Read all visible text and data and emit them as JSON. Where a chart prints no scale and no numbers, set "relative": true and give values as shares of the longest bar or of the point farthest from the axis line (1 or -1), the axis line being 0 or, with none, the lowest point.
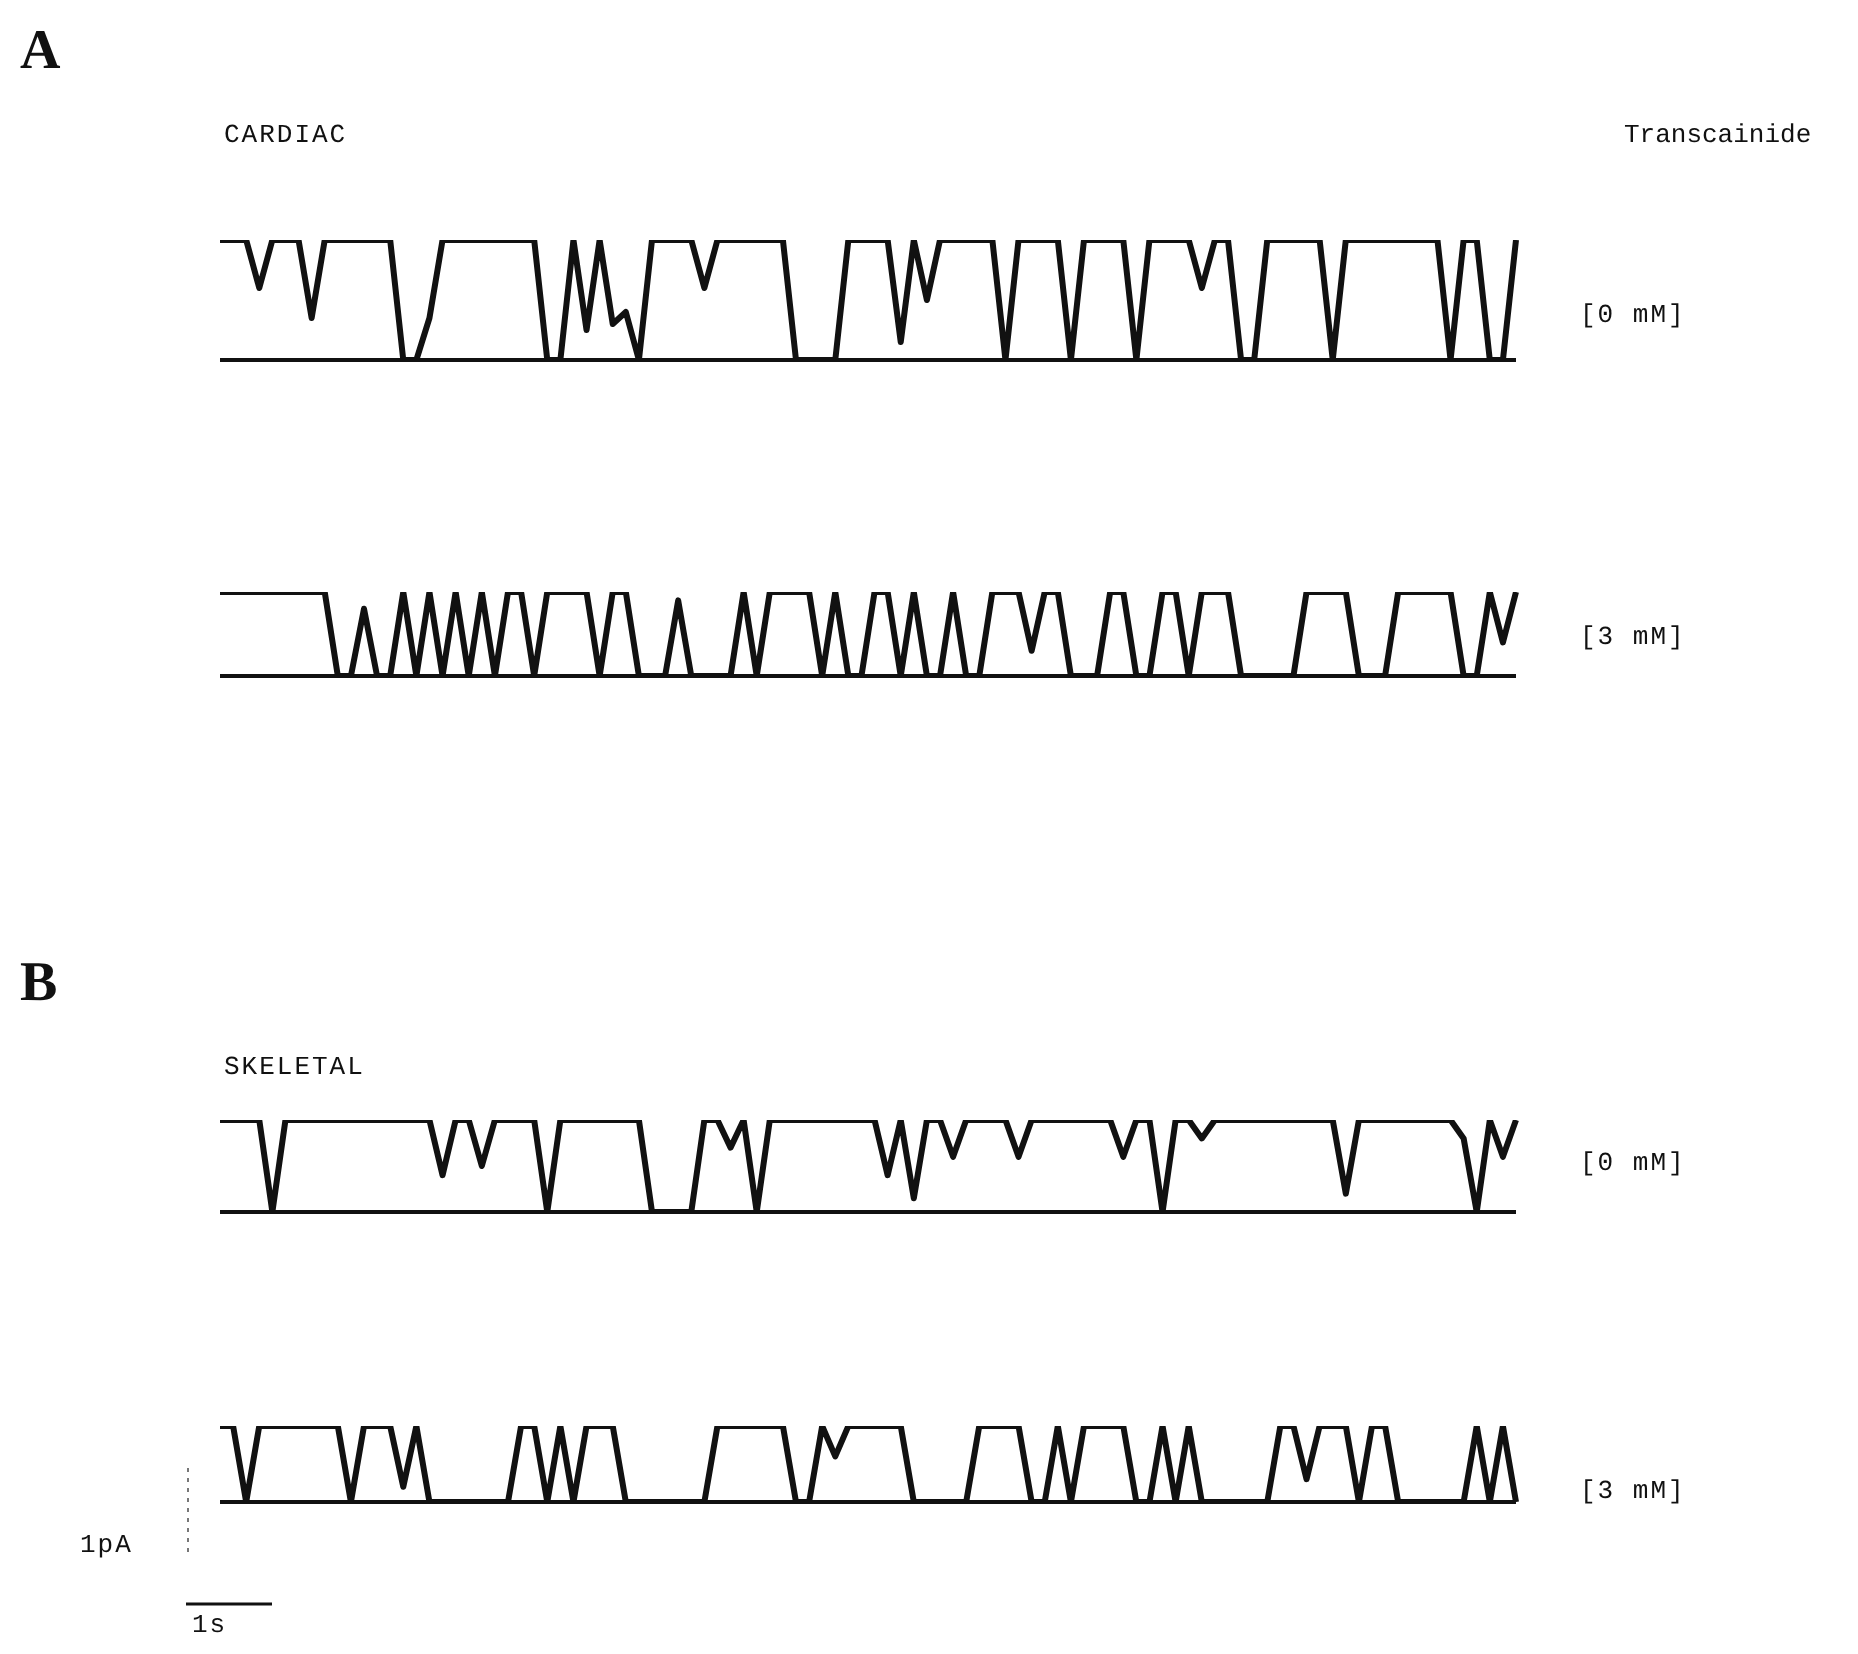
{
  "chart_data": [
    {
      "type": "line",
      "title": "CARDIAC",
      "relative": true,
      "annotations": [
        "A",
        "Transcainide",
        "[0 mM]"
      ],
      "categories": [
        null,
        null,
        null,
        null,
        null,
        null,
        null,
        null,
        null,
        null,
        null,
        null,
        null,
        null,
        null,
        null,
        null,
        null,
        null,
        null,
        null,
        null,
        null,
        null,
        null,
        null,
        null,
        null,
        null,
        null,
        null,
        null,
        null,
        null,
        null,
        null,
        null,
        null,
        null,
        null,
        null,
        null,
        null,
        null,
        null,
        null,
        null,
        null,
        null,
        null,
        null,
        null,
        null,
        null,
        null,
        null,
        null,
        null,
        null,
        null,
        null,
        null,
        null,
        null,
        null,
        null,
        null,
        null,
        null,
        null,
        null,
        null,
        null,
        null,
        null,
        null,
        null,
        null,
        null,
        null,
        null,
        null,
        null,
        null,
        null,
        null,
        null,
        null,
        null,
        null,
        null,
        null,
        null,
        null,
        null,
        null,
        null,
        null,
        null,
        null
      ],
      "series": [
        {
          "color": "#111111",
          "values": [
            1,
            1,
            1,
            0.6,
            1,
            1,
            1,
            0.35,
            1,
            1,
            1,
            1,
            1,
            1,
            0,
            0,
            0.35,
            1,
            1,
            1,
            1,
            1,
            1,
            1,
            1,
            0,
            0,
            1,
            0.25,
            1,
            0.3,
            0.4,
            0,
            1,
            1,
            1,
            1,
            0.6,
            1,
            1,
            1,
            1,
            1,
            1,
            0,
            0,
            0,
            0,
            1,
            1,
            1,
            1,
            0.15,
            1,
            0.5,
            1,
            1,
            1,
            1,
            1,
            0,
            1,
            1,
            1,
            1,
            0,
            1,
            1,
            1,
            1,
            0,
            1,
            1,
            1,
            1,
            0.6,
            1,
            1,
            0,
            0,
            1,
            1,
            1,
            1,
            1,
            0,
            1,
            1,
            1,
            1,
            1,
            1,
            1,
            1,
            0,
            1,
            1,
            0,
            0,
            1
          ]
        }
      ]
    },
    {
      "type": "line",
      "relative": true,
      "annotations": [
        "[3 mM]"
      ],
      "categories": [
        null,
        null,
        null,
        null,
        null,
        null,
        null,
        null,
        null,
        null,
        null,
        null,
        null,
        null,
        null,
        null,
        null,
        null,
        null,
        null,
        null,
        null,
        null,
        null,
        null,
        null,
        null,
        null,
        null,
        null,
        null,
        null,
        null,
        null,
        null,
        null,
        null,
        null,
        null,
        null,
        null,
        null,
        null,
        null,
        null,
        null,
        null,
        null,
        null,
        null,
        null,
        null,
        null,
        null,
        null,
        null,
        null,
        null,
        null,
        null,
        null,
        null,
        null,
        null,
        null,
        null,
        null,
        null,
        null,
        null,
        null,
        null,
        null,
        null,
        null,
        null,
        null,
        null,
        null,
        null,
        null,
        null,
        null,
        null,
        null,
        null,
        null,
        null,
        null,
        null,
        null,
        null,
        null,
        null,
        null,
        null,
        null,
        null,
        null,
        null
      ],
      "series": [
        {
          "color": "#111111",
          "values": [
            1,
            1,
            1,
            1,
            1,
            1,
            1,
            1,
            1,
            0,
            0,
            0.8,
            0,
            0,
            1,
            0,
            1,
            0,
            1,
            0,
            1,
            0,
            1,
            1,
            0,
            1,
            1,
            1,
            1,
            0,
            1,
            1,
            0,
            0,
            0,
            0.9,
            0,
            0,
            0,
            0,
            1,
            0,
            1,
            1,
            1,
            1,
            0,
            1,
            0,
            0,
            1,
            1,
            0,
            1,
            0,
            0,
            1,
            0,
            0,
            1,
            1,
            1,
            0.3,
            1,
            1,
            0,
            0,
            0,
            1,
            1,
            0,
            0,
            1,
            1,
            0,
            1,
            1,
            1,
            0,
            0,
            0,
            0,
            0,
            1,
            1,
            1,
            1,
            0,
            0,
            0,
            1,
            1,
            1,
            1,
            1,
            0,
            0,
            1,
            0.4,
            1
          ]
        }
      ]
    },
    {
      "type": "line",
      "title": "SKELETAL",
      "relative": true,
      "annotations": [
        "B",
        "[0 mM]"
      ],
      "categories": [
        null,
        null,
        null,
        null,
        null,
        null,
        null,
        null,
        null,
        null,
        null,
        null,
        null,
        null,
        null,
        null,
        null,
        null,
        null,
        null,
        null,
        null,
        null,
        null,
        null,
        null,
        null,
        null,
        null,
        null,
        null,
        null,
        null,
        null,
        null,
        null,
        null,
        null,
        null,
        null,
        null,
        null,
        null,
        null,
        null,
        null,
        null,
        null,
        null,
        null,
        null,
        null,
        null,
        null,
        null,
        null,
        null,
        null,
        null,
        null,
        null,
        null,
        null,
        null,
        null,
        null,
        null,
        null,
        null,
        null,
        null,
        null,
        null,
        null,
        null,
        null,
        null,
        null,
        null,
        null,
        null,
        null,
        null,
        null,
        null,
        null,
        null,
        null,
        null,
        null,
        null,
        null,
        null,
        null,
        null,
        null,
        null,
        null,
        null,
        null
      ],
      "series": [
        {
          "color": "#111111",
          "values": [
            1,
            1,
            1,
            1,
            0,
            1,
            1,
            1,
            1,
            1,
            1,
            1,
            1,
            1,
            1,
            1,
            1,
            0.4,
            1,
            1,
            0.5,
            1,
            1,
            1,
            1,
            0,
            1,
            1,
            1,
            1,
            1,
            1,
            1,
            0,
            0,
            0,
            0,
            1,
            1,
            0.7,
            1,
            0,
            1,
            1,
            1,
            1,
            1,
            1,
            1,
            1,
            1,
            0.4,
            1,
            0.15,
            1,
            1,
            0.6,
            1,
            1,
            1,
            1,
            0.6,
            1,
            1,
            1,
            1,
            1,
            1,
            1,
            0.6,
            1,
            1,
            0,
            1,
            1,
            0.8,
            1,
            1,
            1,
            1,
            1,
            1,
            1,
            1,
            1,
            1,
            0.2,
            1,
            1,
            1,
            1,
            1,
            1,
            1,
            1,
            0.8,
            0,
            1,
            0.6,
            1
          ]
        }
      ]
    },
    {
      "type": "line",
      "relative": true,
      "annotations": [
        "[3 mM]",
        "1pA",
        "1s"
      ],
      "categories": [
        null,
        null,
        null,
        null,
        null,
        null,
        null,
        null,
        null,
        null,
        null,
        null,
        null,
        null,
        null,
        null,
        null,
        null,
        null,
        null,
        null,
        null,
        null,
        null,
        null,
        null,
        null,
        null,
        null,
        null,
        null,
        null,
        null,
        null,
        null,
        null,
        null,
        null,
        null,
        null,
        null,
        null,
        null,
        null,
        null,
        null,
        null,
        null,
        null,
        null,
        null,
        null,
        null,
        null,
        null,
        null,
        null,
        null,
        null,
        null,
        null,
        null,
        null,
        null,
        null,
        null,
        null,
        null,
        null,
        null,
        null,
        null,
        null,
        null,
        null,
        null,
        null,
        null,
        null,
        null,
        null,
        null,
        null,
        null,
        null,
        null,
        null,
        null,
        null,
        null,
        null,
        null,
        null,
        null,
        null,
        null,
        null,
        null,
        null,
        null
      ],
      "series": [
        {
          "color": "#111111",
          "values": [
            1,
            1,
            0,
            1,
            1,
            1,
            1,
            1,
            1,
            1,
            0,
            1,
            1,
            1,
            0.2,
            1,
            0,
            0,
            0,
            0,
            0,
            0,
            0,
            1,
            1,
            0,
            1,
            0,
            1,
            1,
            1,
            0,
            0,
            0,
            0,
            0,
            0,
            0,
            1,
            1,
            1,
            1,
            1,
            1,
            0,
            0,
            1,
            0.6,
            1,
            1,
            1,
            1,
            1,
            0,
            0,
            0,
            0,
            0,
            1,
            1,
            1,
            1,
            0,
            0,
            1,
            0,
            1,
            1,
            1,
            1,
            0,
            0,
            1,
            0,
            1,
            0,
            0,
            0,
            0,
            0,
            0,
            1,
            1,
            0.3,
            1,
            1,
            1,
            0,
            1,
            1,
            0,
            0,
            0,
            0,
            0,
            0,
            1,
            0,
            1,
            0
          ]
        }
      ]
    }
  ]
}
